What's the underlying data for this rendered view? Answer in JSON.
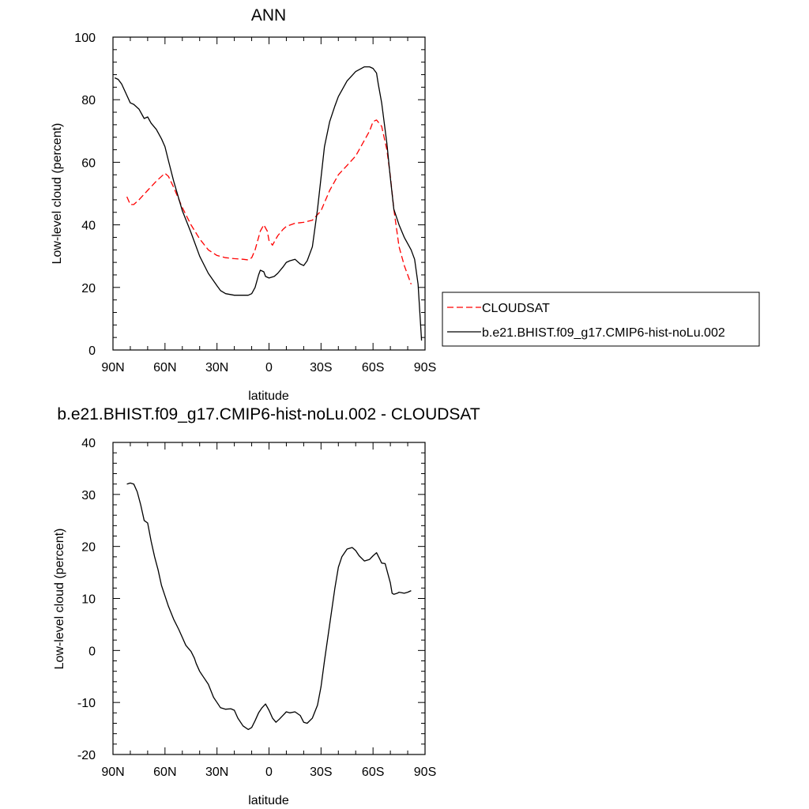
{
  "chart_data": [
    {
      "type": "line",
      "title": "ANN",
      "xlabel": "latitude",
      "ylabel": "Low-level cloud (percent)",
      "xlim": [
        90,
        -90
      ],
      "ylim": [
        0,
        100
      ],
      "xticks": [
        90,
        60,
        30,
        0,
        -30,
        -60,
        -90
      ],
      "xtick_labels": [
        "90N",
        "60N",
        "30N",
        "0",
        "30S",
        "60S",
        "90S"
      ],
      "yticks": [
        0,
        20,
        40,
        60,
        80,
        100
      ],
      "ytick_labels": [
        "0",
        "20",
        "40",
        "60",
        "80",
        "100"
      ],
      "grid": false,
      "legend": "right",
      "series": [
        {
          "name": "CLOUDSAT",
          "color": "#ff0000",
          "dash": "dashed",
          "x": [
            82,
            80,
            78,
            75,
            70,
            65,
            60,
            58,
            55,
            50,
            45,
            40,
            35,
            30,
            25,
            20,
            15,
            12,
            10,
            8,
            6,
            5,
            3,
            1,
            0,
            -2,
            -5,
            -8,
            -10,
            -15,
            -20,
            -25,
            -30,
            -35,
            -40,
            -45,
            -50,
            -55,
            -58,
            -60,
            -62,
            -65,
            -68,
            -70,
            -72,
            -75,
            -78,
            -80,
            -82
          ],
          "y": [
            49,
            46.5,
            46.5,
            48,
            51,
            54,
            56.5,
            55.5,
            52,
            45.5,
            40,
            35.5,
            32,
            30.2,
            29.5,
            29.2,
            29,
            28.8,
            29.5,
            32,
            36,
            38,
            40,
            38,
            35,
            33.5,
            36.5,
            38.5,
            39.5,
            40.5,
            40.8,
            41.5,
            44.5,
            51,
            56,
            59,
            62,
            67,
            70,
            73,
            73.5,
            71.5,
            64,
            55.5,
            45,
            33,
            27,
            24,
            21
          ]
        },
        {
          "name": "b.e21.BHIST.f09_g17.CMIP6-hist-noLu.002",
          "color": "#000000",
          "dash": "solid",
          "x": [
            89,
            87,
            85,
            80,
            78,
            75,
            72,
            70,
            68,
            65,
            62,
            60,
            58,
            55,
            50,
            45,
            40,
            35,
            30,
            28,
            25,
            20,
            15,
            12,
            10,
            8,
            6,
            5,
            3,
            2,
            0,
            -3,
            -5,
            -8,
            -10,
            -12,
            -15,
            -18,
            -20,
            -22,
            -25,
            -28,
            -30,
            -32,
            -35,
            -38,
            -40,
            -45,
            -50,
            -55,
            -58,
            -60,
            -62,
            -63,
            -65,
            -68,
            -70,
            -72,
            -75,
            -78,
            -80,
            -82,
            -84,
            -86,
            -88
          ],
          "y": [
            87,
            86.5,
            85,
            79,
            78.5,
            77,
            74,
            74.5,
            72.5,
            70.5,
            67.5,
            65,
            60.5,
            54,
            44.5,
            37.5,
            30,
            24.5,
            20.5,
            19,
            18,
            17.5,
            17.5,
            17.5,
            18,
            20,
            24,
            25.5,
            25,
            23.5,
            23,
            23.5,
            24.5,
            26.5,
            28,
            28.5,
            29,
            27.5,
            27,
            28.5,
            33,
            45,
            55,
            65,
            73,
            78,
            81,
            86,
            89,
            90.5,
            90.5,
            90,
            88.5,
            85,
            79,
            66,
            55,
            45,
            40,
            36,
            34,
            32,
            29,
            21,
            3
          ]
        }
      ]
    },
    {
      "type": "line",
      "title": "b.e21.BHIST.f09_g17.CMIP6-hist-noLu.002 - CLOUDSAT",
      "xlabel": "latitude",
      "ylabel": "Low-level cloud (percent)",
      "xlim": [
        90,
        -90
      ],
      "ylim": [
        -20,
        40
      ],
      "xticks": [
        90,
        60,
        30,
        0,
        -30,
        -60,
        -90
      ],
      "xtick_labels": [
        "90N",
        "60N",
        "30N",
        "0",
        "30S",
        "60S",
        "90S"
      ],
      "yticks": [
        -20,
        -10,
        0,
        10,
        20,
        30,
        40
      ],
      "ytick_labels": [
        "-20",
        "-10",
        "0",
        "10",
        "20",
        "30",
        "40"
      ],
      "grid": false,
      "series": [
        {
          "color": "#000000",
          "dash": "solid",
          "x": [
            82,
            80,
            78,
            76,
            74,
            72,
            70,
            68,
            66,
            64,
            62,
            60,
            58,
            55,
            52,
            50,
            48,
            45,
            43,
            42,
            40,
            38,
            35,
            32,
            30,
            28,
            25,
            22,
            20,
            18,
            15,
            12,
            10,
            8,
            6,
            4,
            2,
            0,
            -2,
            -4,
            -6,
            -8,
            -10,
            -12,
            -15,
            -18,
            -20,
            -22,
            -25,
            -28,
            -30,
            -32,
            -35,
            -38,
            -40,
            -42,
            -45,
            -48,
            -50,
            -52,
            -55,
            -58,
            -60,
            -62,
            -64,
            -65,
            -67,
            -70,
            -71,
            -72,
            -74,
            -75,
            -78,
            -80,
            -82
          ],
          "y": [
            32,
            32.2,
            32,
            30.5,
            28,
            25,
            24.5,
            21,
            18,
            15.5,
            12.5,
            10.5,
            8.5,
            6,
            4,
            2.5,
            1,
            -0.2,
            -1.5,
            -2.5,
            -4,
            -5,
            -6.5,
            -9,
            -10,
            -11,
            -11.3,
            -11.2,
            -11.5,
            -13,
            -14.5,
            -15.2,
            -14.8,
            -13.5,
            -12,
            -11,
            -10.3,
            -11.5,
            -13,
            -13.8,
            -13.2,
            -12.5,
            -11.8,
            -12,
            -11.8,
            -12.5,
            -13.8,
            -14,
            -13,
            -10.5,
            -7,
            -2,
            5,
            12,
            16,
            18,
            19.5,
            19.8,
            19.2,
            18.2,
            17.2,
            17.5,
            18.2,
            18.8,
            17.5,
            16.8,
            16.7,
            13,
            11,
            10.8,
            11,
            11.2,
            11,
            11.2,
            11.5
          ]
        }
      ]
    }
  ]
}
